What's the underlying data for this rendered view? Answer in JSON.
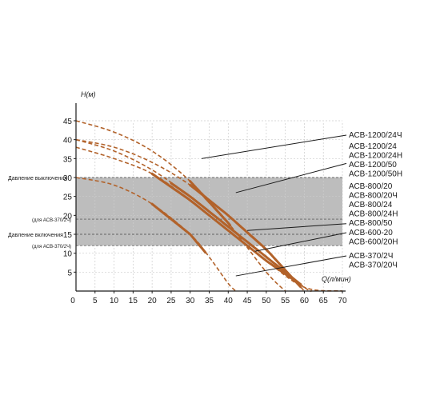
{
  "chart_data": {
    "type": "line",
    "xlabel": "Q(л/мин)",
    "ylabel": "H(м)",
    "xlim": [
      0,
      70
    ],
    "ylim": [
      0,
      45
    ],
    "x_ticks": [
      "5",
      "10",
      "15",
      "20",
      "25",
      "30",
      "35",
      "40",
      "45",
      "50",
      "55",
      "60",
      "65",
      "70"
    ],
    "y_ticks": [
      "5",
      "10",
      "15",
      "20",
      "25",
      "30",
      "35",
      "40",
      "45"
    ],
    "origin_label": "0",
    "grid": true,
    "shaded_band": {
      "ymin": 12,
      "ymax": 30,
      "color": "#bdbdbd"
    },
    "reference_lines": [
      {
        "y": 30,
        "label": "Давление выключения",
        "style": "dashed"
      },
      {
        "y": 19,
        "label": "(для АСВ-370/2Ч)",
        "style": "dashed"
      },
      {
        "y": 15,
        "label": "Давление включения",
        "style": "dashed"
      },
      {
        "y": 12,
        "label": "(для АСВ-370/2Ч)",
        "style": "dashed"
      }
    ],
    "series": [
      {
        "key": "c45",
        "points": [
          [
            0,
            45
          ],
          [
            10,
            42
          ],
          [
            20,
            37
          ],
          [
            30,
            29
          ],
          [
            40,
            18
          ],
          [
            50,
            5
          ],
          [
            55,
            0
          ]
        ],
        "solid_range": [
          30,
          40.5
        ]
      },
      {
        "key": "c40a",
        "points": [
          [
            0,
            40
          ],
          [
            10,
            38
          ],
          [
            20,
            34
          ],
          [
            30,
            28
          ],
          [
            40,
            20
          ],
          [
            50,
            11
          ],
          [
            60,
            0
          ]
        ],
        "solid_range": [
          30,
          59
        ]
      },
      {
        "key": "c40b",
        "points": [
          [
            0,
            40
          ],
          [
            10,
            37
          ],
          [
            20,
            32
          ],
          [
            30,
            25
          ],
          [
            40,
            17
          ],
          [
            50,
            9
          ],
          [
            60,
            1
          ],
          [
            62,
            0
          ]
        ],
        "solid_range": [
          25,
          59
        ]
      },
      {
        "key": "c38",
        "points": [
          [
            0,
            38
          ],
          [
            10,
            35
          ],
          [
            20,
            31
          ],
          [
            30,
            24
          ],
          [
            40,
            16
          ],
          [
            50,
            8
          ],
          [
            60,
            1
          ],
          [
            70,
            0
          ]
        ],
        "solid_range": [
          20,
          58
        ]
      },
      {
        "key": "c30",
        "points": [
          [
            0,
            30
          ],
          [
            10,
            28
          ],
          [
            20,
            23
          ],
          [
            30,
            15
          ],
          [
            35,
            9
          ],
          [
            40,
            2
          ],
          [
            42,
            0
          ]
        ],
        "solid_range": [
          20,
          34
        ]
      }
    ],
    "legend": [
      {
        "lines": [
          "АСВ-1200/24Ч"
        ],
        "target": [
          33,
          35
        ]
      },
      {
        "lines": [
          "АСВ-1200/24",
          "АСВ-1200/24Н",
          "АСВ-1200/50",
          "АСВ-1200/50Н"
        ],
        "target": [
          42,
          26
        ]
      },
      {
        "lines": [
          "АСВ-800/20",
          "АСВ-800/20Ч",
          "АСВ-800/24",
          "АСВ-800/24Н",
          "АСВ-800/50"
        ],
        "target": [
          45,
          16
        ]
      },
      {
        "lines": [
          "АСВ-600-20",
          "АСВ-600/20Н"
        ],
        "target": [
          47,
          10.5
        ]
      },
      {
        "lines": [
          "АСВ-370/2Ч",
          "АСВ-370/20Ч"
        ],
        "target": [
          42,
          4
        ]
      }
    ],
    "colors": {
      "curve": "#b2622a",
      "grid": "#cccccc",
      "axis": "#1a1a1a",
      "band": "#bdbdbd",
      "leader": "#1a1a1a"
    }
  }
}
